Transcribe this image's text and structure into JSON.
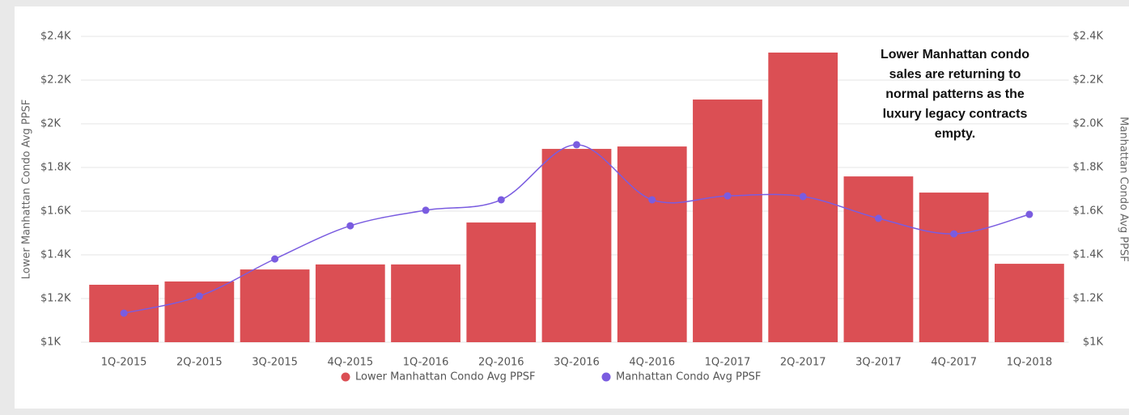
{
  "chart_data": {
    "type": "bar-line",
    "categories": [
      "1Q-2015",
      "2Q-2015",
      "3Q-2015",
      "4Q-2015",
      "1Q-2016",
      "2Q-2016",
      "3Q-2016",
      "4Q-2016",
      "1Q-2017",
      "2Q-2017",
      "3Q-2017",
      "4Q-2017",
      "1Q-2018"
    ],
    "series": [
      {
        "name": "Lower Manhattan Condo Avg PPSF",
        "type": "bar",
        "color": "#db4f54",
        "values": [
          1263,
          1278,
          1333,
          1356,
          1356,
          1548,
          1885,
          1896,
          2111,
          2326,
          1759,
          1685,
          1359
        ]
      },
      {
        "name": "Manhattan Condo Avg PPSF",
        "type": "line",
        "axis": "y2",
        "color": "#7a5ce0",
        "values": [
          1133,
          1211,
          1381,
          1533,
          1604,
          1652,
          1904,
          1652,
          1670,
          1667,
          1567,
          1496,
          1585
        ]
      }
    ],
    "ylabel": "Lower Manhattan Condo Avg PPSF",
    "y2label": "Manhattan Condo Avg PPSF",
    "ylim": [
      1000,
      2400
    ],
    "yticks": [
      {
        "value": 1000,
        "label": "$1K"
      },
      {
        "value": 1200,
        "label": "$1.2K"
      },
      {
        "value": 1400,
        "label": "$1.4K"
      },
      {
        "value": 1600,
        "label": "$1.6K"
      },
      {
        "value": 1800,
        "label": "$1.8K"
      },
      {
        "value": 2000,
        "label": "$2K"
      },
      {
        "value": 2200,
        "label": "$2.2K"
      },
      {
        "value": 2400,
        "label": "$2.4K"
      }
    ],
    "y2lim": [
      1000,
      2400
    ],
    "y2ticks": [
      {
        "value": 1000,
        "label": "$1K"
      },
      {
        "value": 1200,
        "label": "$1.2K"
      },
      {
        "value": 1400,
        "label": "$1.4K"
      },
      {
        "value": 1600,
        "label": "$1.6K"
      },
      {
        "value": 1800,
        "label": "$1.8K"
      },
      {
        "value": 2000,
        "label": "$2.0K"
      },
      {
        "value": 2200,
        "label": "$2.2K"
      },
      {
        "value": 2400,
        "label": "$2.4K"
      }
    ],
    "annotation": [
      "Lower Manhattan condo",
      "sales are returning to",
      "normal patterns as the",
      "luxury legacy contracts",
      "empty."
    ],
    "grid": true,
    "legend": "bottom"
  }
}
